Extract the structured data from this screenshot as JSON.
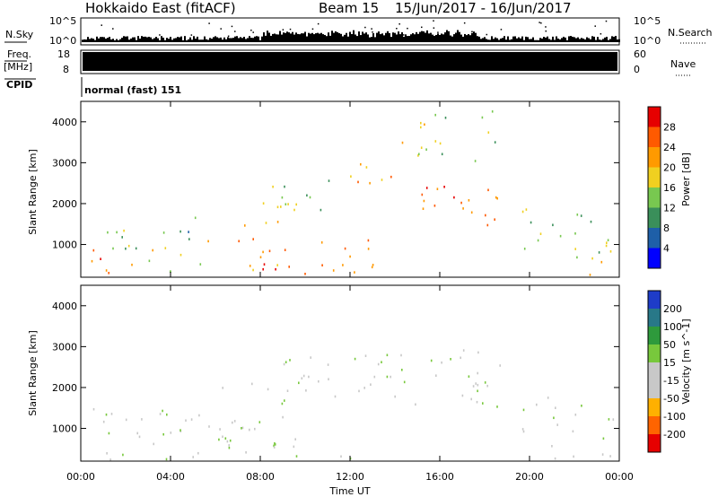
{
  "header": {
    "title": "Hokkaido East (fitACF)",
    "beam": "Beam 15",
    "date_range": "15/Jun/2017 - 16/Jun/2017"
  },
  "strip": {
    "nsky_label": "N.Sky",
    "nsky_ticks": [
      "10^5",
      "10^0"
    ],
    "nsearch_label": "N.Search",
    "nsearch_ticks": [
      "10^5",
      "10^0"
    ],
    "freq_label_top": "Freq.",
    "freq_label_unit": "[MHz]",
    "freq_ticks": [
      "18",
      "8"
    ],
    "nave_label": "Nave",
    "nave_ticks": [
      "60",
      "0"
    ],
    "cpid_label": "CPID",
    "cpid_text": "normal (fast) 151"
  },
  "colors": {
    "power_scale": [
      "#0000ff",
      "#1e5fa8",
      "#3a8f5a",
      "#78c850",
      "#f0d020",
      "#ff9a00",
      "#ff5a00",
      "#e60000"
    ],
    "velocity_scale": [
      "#1e3cc8",
      "#287888",
      "#2e9a3c",
      "#78c83c",
      "#c8c8c8",
      "#c8c8c8",
      "#ffb000",
      "#ff6400",
      "#e60000"
    ]
  },
  "chart_data": [
    {
      "type": "heatmap",
      "title": "Power",
      "xlabel": "Time UT",
      "ylabel": "Slant Range [km]",
      "x_ticks": [
        "00:00",
        "04:00",
        "08:00",
        "12:00",
        "16:00",
        "20:00",
        "00:00"
      ],
      "y_ticks": [
        1000,
        2000,
        3000,
        4000
      ],
      "ylim": [
        200,
        4500
      ],
      "colorbar": {
        "label": "Power [dB]",
        "ticks": [
          4,
          8,
          12,
          16,
          20,
          24,
          28
        ],
        "range": [
          0,
          32
        ]
      },
      "regions": [
        {
          "t0": 0.0,
          "t1": 2.2,
          "r0": 250,
          "r1": 900,
          "value": 26
        },
        {
          "t0": 0.0,
          "t1": 2.5,
          "r0": 900,
          "r1": 1500,
          "value": 13
        },
        {
          "t0": 2.0,
          "t1": 5.5,
          "r0": 300,
          "r1": 1000,
          "value": 17
        },
        {
          "t0": 3.5,
          "t1": 5.5,
          "r0": 1000,
          "r1": 1800,
          "value": 12
        },
        {
          "t0": 5.5,
          "t1": 9.5,
          "r0": 350,
          "r1": 1300,
          "value": 23
        },
        {
          "t0": 7.5,
          "t1": 10.0,
          "r0": 250,
          "r1": 700,
          "value": 27
        },
        {
          "t0": 7.0,
          "t1": 9.5,
          "r0": 1300,
          "r1": 2200,
          "value": 18
        },
        {
          "t0": 8.5,
          "t1": 11.5,
          "r0": 1800,
          "r1": 2700,
          "value": 14
        },
        {
          "t0": 10.5,
          "t1": 13.0,
          "r0": 300,
          "r1": 1300,
          "value": 24
        },
        {
          "t0": 12.0,
          "t1": 15.5,
          "r0": 2400,
          "r1": 3000,
          "value": 21
        },
        {
          "t0": 13.5,
          "t1": 19.0,
          "r0": 1500,
          "r1": 2500,
          "value": 26
        },
        {
          "t0": 13.5,
          "t1": 15.5,
          "r0": 3200,
          "r1": 4000,
          "value": 19
        },
        {
          "t0": 15.0,
          "t1": 18.5,
          "r0": 3000,
          "r1": 4400,
          "value": 14
        },
        {
          "t0": 19.5,
          "t1": 24.0,
          "r0": 700,
          "r1": 1900,
          "value": 13
        },
        {
          "t0": 20.5,
          "t1": 24.0,
          "r0": 250,
          "r1": 700,
          "value": 20
        }
      ]
    },
    {
      "type": "heatmap",
      "title": "Velocity",
      "xlabel": "Time UT",
      "ylabel": "Slant Range [km]",
      "x_ticks": [
        "00:00",
        "04:00",
        "08:00",
        "12:00",
        "16:00",
        "20:00",
        "00:00"
      ],
      "y_ticks": [
        1000,
        2000,
        3000,
        4000
      ],
      "ylim": [
        200,
        4500
      ],
      "colorbar": {
        "label": "Velocity [m s^-1]",
        "ticks": [
          200,
          100,
          50,
          15,
          -15,
          -50,
          -100,
          -200
        ],
        "range": [
          -250,
          250
        ]
      },
      "regions": [
        {
          "t0": 0.0,
          "t1": 5.5,
          "r0": 250,
          "r1": 1500,
          "value": -5
        },
        {
          "t0": 5.5,
          "t1": 10.0,
          "r0": 300,
          "r1": 2200,
          "value": 0
        },
        {
          "t0": 8.5,
          "t1": 12.0,
          "r0": 1800,
          "r1": 2800,
          "value": 5
        },
        {
          "t0": 11.0,
          "t1": 12.5,
          "r0": 250,
          "r1": 600,
          "value": 30
        },
        {
          "t0": 12.0,
          "t1": 19.0,
          "r0": 1500,
          "r1": 3000,
          "value": 0
        },
        {
          "t0": 16.5,
          "t1": 18.5,
          "r0": 1700,
          "r1": 2300,
          "value": 30
        },
        {
          "t0": 19.5,
          "t1": 24.0,
          "r0": 700,
          "r1": 1900,
          "value": 0
        },
        {
          "t0": 20.0,
          "t1": 24.0,
          "r0": 250,
          "r1": 600,
          "value": -40
        }
      ]
    }
  ]
}
